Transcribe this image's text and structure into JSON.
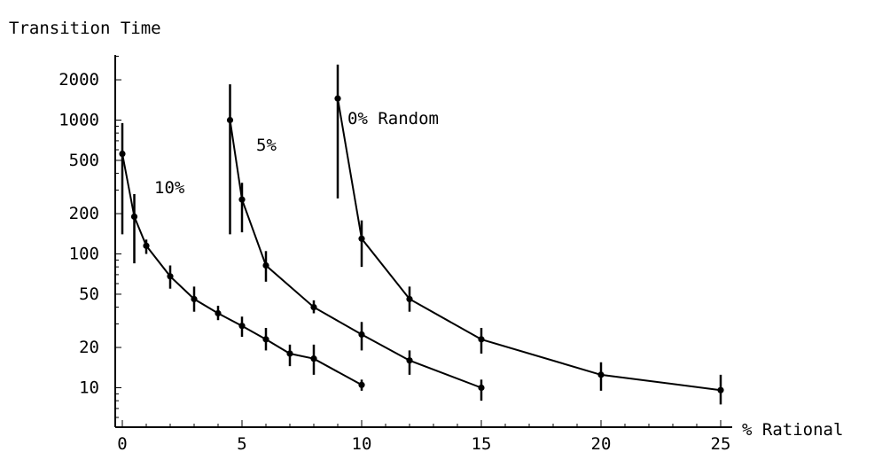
{
  "chart_data": {
    "type": "line",
    "ylabel": "Transition Time",
    "xlabel": "% Rational",
    "y_scale": "log",
    "ylim": [
      5.5,
      3500
    ],
    "xlim": [
      0,
      25
    ],
    "x_ticks": [
      0,
      5,
      10,
      15,
      20,
      25
    ],
    "y_ticks": [
      10,
      20,
      50,
      100,
      200,
      500,
      1000,
      2000
    ],
    "grid": false,
    "series": [
      {
        "name": "10%",
        "x": [
          0,
          0.5,
          1,
          2,
          3,
          4,
          5,
          6,
          7,
          8,
          10
        ],
        "y": [
          560,
          190,
          115,
          68,
          46,
          36,
          29,
          23,
          18,
          16.5,
          10.5
        ],
        "err_low": [
          140,
          85,
          100,
          55,
          37,
          32,
          24,
          19,
          14.5,
          12.5,
          9.5
        ],
        "err_high": [
          950,
          280,
          128,
          82,
          57,
          41,
          34,
          28,
          21,
          21,
          11.5
        ]
      },
      {
        "name": "5%",
        "x": [
          4.5,
          5,
          6,
          8,
          10,
          12,
          15
        ],
        "y": [
          1000,
          255,
          82,
          40,
          25,
          16,
          10
        ],
        "err_low": [
          140,
          145,
          62,
          36,
          19,
          12.5,
          8
        ],
        "err_high": [
          1850,
          340,
          105,
          45,
          31,
          19,
          11.5
        ]
      },
      {
        "name": "0% Random",
        "x": [
          9,
          10,
          12,
          15,
          20,
          25
        ],
        "y": [
          1450,
          130,
          46,
          23,
          12.5,
          9.6
        ],
        "err_low": [
          260,
          80,
          37,
          18,
          9.5,
          7.5
        ],
        "err_high": [
          2600,
          178,
          57,
          28,
          15.5,
          12.5
        ]
      }
    ]
  }
}
